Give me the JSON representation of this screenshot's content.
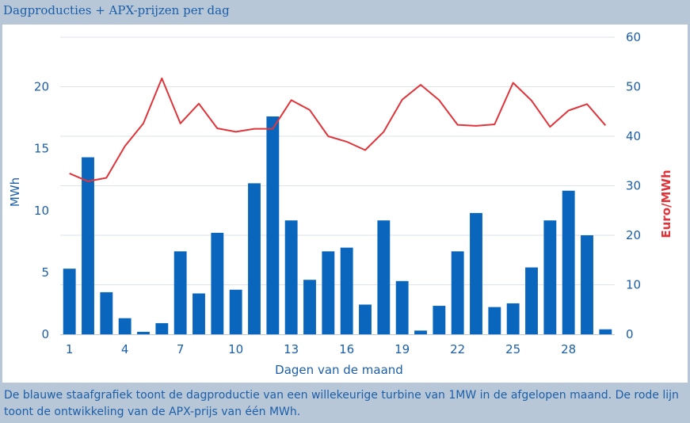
{
  "title": "Dagproducties + APX-prijzen per dag",
  "caption": "De blauwe staafgrafiek toont de dagproductie van een willekeurige turbine van 1MW in de afgelopen maand. De rode lijn toont de ontwikkeling van de APX-prijs van één MWh.",
  "colors": {
    "bar": "#0a66bd",
    "line": "#e0343a",
    "axis_text": "#1c5fa8",
    "grid": "#dde3ea"
  },
  "chart_data": {
    "type": "bar+line",
    "xlabel": "Dagen van de maand",
    "ylabel_left": "MWh",
    "ylabel_right": "Euro/MWh",
    "ylim_left": [
      0,
      24
    ],
    "ylim_right": [
      0,
      60
    ],
    "yticks_left": [
      0,
      5,
      10,
      15,
      20
    ],
    "yticks_right": [
      0,
      10,
      20,
      30,
      40,
      50,
      60
    ],
    "xlim": [
      0.5,
      30.5
    ],
    "xticks": [
      1,
      4,
      7,
      10,
      13,
      16,
      19,
      22,
      25,
      28
    ],
    "grid": true,
    "days": [
      1,
      2,
      3,
      4,
      5,
      6,
      7,
      8,
      9,
      10,
      11,
      12,
      13,
      14,
      15,
      16,
      17,
      18,
      19,
      20,
      21,
      22,
      23,
      24,
      25,
      26,
      27,
      28,
      29,
      30
    ],
    "series": [
      {
        "name": "MWh",
        "type": "bar",
        "axis": "left",
        "values": [
          5.3,
          14.3,
          3.4,
          1.3,
          0.2,
          0.9,
          6.7,
          3.3,
          8.2,
          3.6,
          12.2,
          17.6,
          9.2,
          4.4,
          6.7,
          7.0,
          2.4,
          9.2,
          4.3,
          0.3,
          2.3,
          6.7,
          9.8,
          2.2,
          2.5,
          5.4,
          9.2,
          11.6,
          8.0,
          0.4
        ]
      },
      {
        "name": "Euro/MWh",
        "type": "line",
        "axis": "right",
        "values": [
          32.5,
          30.9,
          31.6,
          38.0,
          42.6,
          51.7,
          42.6,
          46.6,
          41.6,
          40.9,
          41.5,
          41.5,
          47.3,
          45.3,
          40.0,
          38.9,
          37.2,
          40.9,
          47.4,
          50.4,
          47.3,
          42.3,
          42.1,
          42.4,
          50.8,
          47.2,
          41.9,
          45.2,
          46.5,
          42.2
        ]
      }
    ]
  }
}
